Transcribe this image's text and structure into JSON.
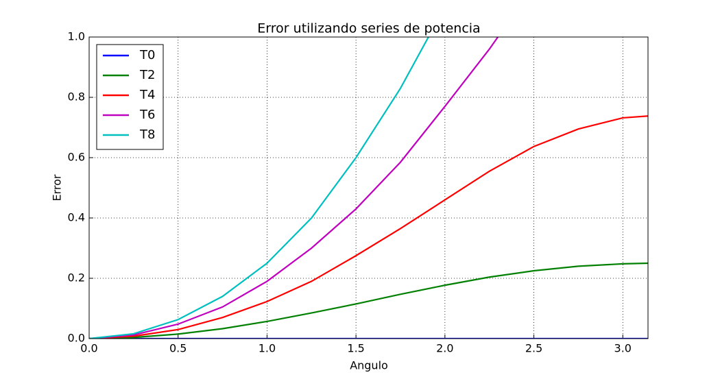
{
  "chart_data": {
    "type": "line",
    "title": "Error utilizando series de potencia",
    "x_label": "Angulo",
    "y_label": "Error",
    "x": [
      0,
      0.25,
      0.5,
      0.75,
      1.0,
      1.25,
      1.5,
      1.75,
      2.0,
      2.25,
      2.5,
      2.75,
      3.0,
      3.14159
    ],
    "series": [
      {
        "name": "T0",
        "color": "#0000ff",
        "values": [
          0,
          0,
          0,
          0,
          0,
          0,
          0,
          0,
          0,
          0,
          0,
          0,
          0,
          0
        ]
      },
      {
        "name": "T2",
        "color": "#008000",
        "values": [
          0,
          0.004,
          0.015,
          0.033,
          0.057,
          0.085,
          0.115,
          0.147,
          0.177,
          0.204,
          0.225,
          0.24,
          0.248,
          0.25
        ]
      },
      {
        "name": "T4",
        "color": "#ff0000",
        "values": [
          0,
          0.008,
          0.03,
          0.07,
          0.123,
          0.19,
          0.275,
          0.365,
          0.46,
          0.555,
          0.637,
          0.695,
          0.732,
          0.738
        ]
      },
      {
        "name": "T6",
        "color": "#bf00bf",
        "values": [
          0,
          0.012,
          0.048,
          0.105,
          0.19,
          0.3,
          0.43,
          0.585,
          0.77,
          0.96,
          1.17,
          null,
          null,
          null
        ]
      },
      {
        "name": "T8",
        "color": "#00bfbf",
        "values": [
          0,
          0.016,
          0.063,
          0.14,
          0.25,
          0.4,
          0.6,
          0.83,
          1.1,
          null,
          null,
          null,
          null,
          null
        ]
      }
    ],
    "xlim": [
      0,
      3.14159
    ],
    "ylim": [
      0,
      1
    ],
    "xticks": [
      {
        "value": 0,
        "label": "0.0"
      },
      {
        "value": 0.5,
        "label": "0.5"
      },
      {
        "value": 1,
        "label": "1.0"
      },
      {
        "value": 1.5,
        "label": "1.5"
      },
      {
        "value": 2,
        "label": "2.0"
      },
      {
        "value": 2.5,
        "label": "2.5"
      },
      {
        "value": 3,
        "label": "3.0"
      }
    ],
    "yticks": [
      {
        "value": 0,
        "label": "0.0"
      },
      {
        "value": 0.2,
        "label": "0.2"
      },
      {
        "value": 0.4,
        "label": "0.4"
      },
      {
        "value": 0.6,
        "label": "0.6"
      },
      {
        "value": 0.8,
        "label": "0.8"
      },
      {
        "value": 1,
        "label": "1.0"
      }
    ],
    "grid": true,
    "legend": "upper-left"
  }
}
